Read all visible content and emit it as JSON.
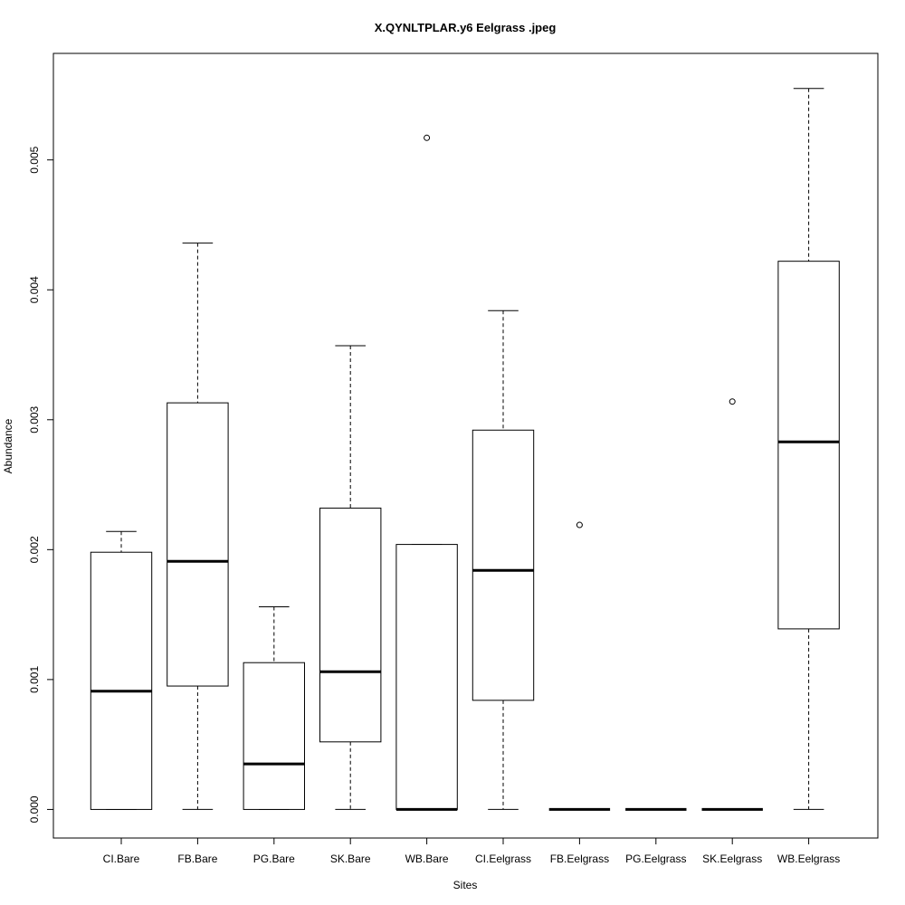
{
  "chart_data": {
    "type": "boxplot",
    "title": "X.QYNLTPLAR.y6 Eelgrass .jpeg",
    "xlabel": "Sites",
    "ylabel": "Abundance",
    "ylim": [
      -0.00022,
      0.00582
    ],
    "yticks": [
      0.0,
      0.001,
      0.002,
      0.003,
      0.004,
      0.005
    ],
    "ytick_labels": [
      "0.000",
      "0.001",
      "0.002",
      "0.003",
      "0.004",
      "0.005"
    ],
    "grid": false,
    "categories": [
      "CI.Bare",
      "FB.Bare",
      "PG.Bare",
      "SK.Bare",
      "WB.Bare",
      "CI.Eelgrass",
      "FB.Eelgrass",
      "PG.Eelgrass",
      "SK.Eelgrass",
      "WB.Eelgrass"
    ],
    "boxes": [
      {
        "whisker_low": 0.0,
        "q1": 0.0,
        "median": 0.00091,
        "q3": 0.00198,
        "whisker_high": 0.00214,
        "outliers": []
      },
      {
        "whisker_low": 0.0,
        "q1": 0.00095,
        "median": 0.00191,
        "q3": 0.00313,
        "whisker_high": 0.00436,
        "outliers": []
      },
      {
        "whisker_low": 0.0,
        "q1": 0.0,
        "median": 0.00035,
        "q3": 0.00113,
        "whisker_high": 0.00156,
        "outliers": []
      },
      {
        "whisker_low": 0.0,
        "q1": 0.00052,
        "median": 0.00106,
        "q3": 0.00232,
        "whisker_high": 0.00357,
        "outliers": []
      },
      {
        "whisker_low": 0.0,
        "q1": 0.0,
        "median": 0.0,
        "q3": 0.00204,
        "whisker_high": 0.00204,
        "outliers": [
          0.00517
        ]
      },
      {
        "whisker_low": 0.0,
        "q1": 0.00084,
        "median": 0.00184,
        "q3": 0.00292,
        "whisker_high": 0.00384,
        "outliers": []
      },
      {
        "whisker_low": 0.0,
        "q1": 0.0,
        "median": 0.0,
        "q3": 0.0,
        "whisker_high": 0.0,
        "outliers": [
          0.00219
        ]
      },
      {
        "whisker_low": 0.0,
        "q1": 0.0,
        "median": 0.0,
        "q3": 0.0,
        "whisker_high": 0.0,
        "outliers": []
      },
      {
        "whisker_low": 0.0,
        "q1": 0.0,
        "median": 0.0,
        "q3": 0.0,
        "whisker_high": 0.0,
        "outliers": [
          0.00314
        ]
      },
      {
        "whisker_low": 0.0,
        "q1": 0.00139,
        "median": 0.00283,
        "q3": 0.00422,
        "whisker_high": 0.00555,
        "outliers": []
      }
    ]
  }
}
